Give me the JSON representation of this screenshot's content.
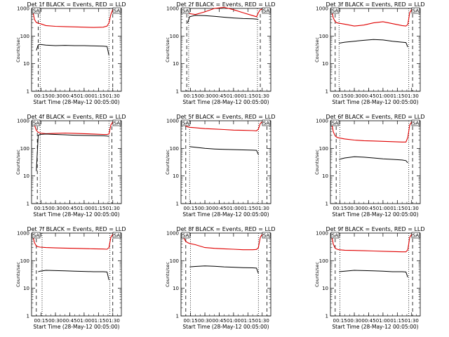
{
  "figure": {
    "series_colors": {
      "events": "#000000",
      "lld": "#e00000"
    }
  },
  "chart_data": [
    {
      "type": "line",
      "panel": "det1f",
      "title": "Det 1f BLACK = Events, RED = LLD",
      "xlabel": "Start Time (28-May-12 00:05:00)",
      "ylabel": "Counts/sec",
      "xlim": [
        "00:05",
        "01:39"
      ],
      "ylim": [
        1,
        1000
      ],
      "yscale": "log",
      "xticks": [
        "00:15",
        "00:30",
        "00:45",
        "01:00",
        "01:15",
        "01:30"
      ],
      "yticks": [
        "1",
        "10",
        "100",
        "1000"
      ],
      "saa_marker_labels": [
        "SA",
        "SA"
      ],
      "x_minutes": [
        6,
        8,
        10,
        12,
        14,
        20,
        30,
        40,
        50,
        60,
        70,
        80,
        84,
        86,
        88,
        90,
        92
      ],
      "series": [
        {
          "name": "LLD",
          "color": "#e00000",
          "values": [
            900,
            400,
            310,
            290,
            280,
            240,
            225,
            220,
            215,
            210,
            205,
            210,
            230,
            300,
            600,
            900,
            950
          ]
        },
        {
          "name": "Events",
          "color": "#000000",
          "values": [
            null,
            null,
            30,
            48,
            50,
            47,
            45,
            46,
            45,
            45,
            44,
            43,
            42,
            20,
            null,
            null,
            null
          ]
        }
      ],
      "dashed_lines_min": [
        12,
        90
      ],
      "dotted_lines_min": [
        14,
        86
      ]
    },
    {
      "type": "line",
      "panel": "det2f",
      "title": "Det 2f BLACK = Events, RED = LLD",
      "xlabel": "Start Time (28-May-12 00:05:00)",
      "ylabel": "Counts/sec",
      "xlim": [
        "00:05",
        "01:39"
      ],
      "ylim": [
        1,
        1000
      ],
      "yscale": "log",
      "xticks": [
        "00:15",
        "00:30",
        "00:45",
        "01:00",
        "01:15",
        "01:30"
      ],
      "yticks": [
        "1",
        "10",
        "100",
        "1000"
      ],
      "saa_marker_labels": [
        "SA",
        "SA"
      ],
      "x_minutes": [
        6,
        8,
        10,
        12,
        14,
        20,
        30,
        40,
        50,
        60,
        70,
        80,
        84,
        86,
        88,
        90,
        92
      ],
      "series": [
        {
          "name": "LLD",
          "color": "#e00000",
          "values": [
            900,
            900,
            800,
            700,
            650,
            600,
            750,
            1000,
            1100,
            900,
            700,
            550,
            500,
            700,
            900,
            950,
            950
          ]
        },
        {
          "name": "Events",
          "color": "#000000",
          "values": [
            null,
            null,
            null,
            300,
            500,
            560,
            550,
            520,
            480,
            450,
            430,
            420,
            410,
            400,
            null,
            null,
            null
          ]
        }
      ],
      "dashed_lines_min": [
        11,
        88
      ],
      "dotted_lines_min": [
        13,
        85
      ]
    },
    {
      "type": "line",
      "panel": "det3f",
      "title": "Det 3f BLACK = Events, RED = LLD",
      "xlabel": "Start Time (28-May-12 00:05:00)",
      "ylabel": "Counts/sec",
      "xlim": [
        "00:05",
        "01:39"
      ],
      "ylim": [
        1,
        1000
      ],
      "yscale": "log",
      "xticks": [
        "00:15",
        "00:30",
        "00:45",
        "01:00",
        "01:15",
        "01:30"
      ],
      "yticks": [
        "1",
        "10",
        "100",
        "1000"
      ],
      "saa_marker_labels": [
        "SA",
        "SA"
      ],
      "x_minutes": [
        6,
        8,
        10,
        12,
        14,
        20,
        30,
        40,
        50,
        60,
        70,
        80,
        84,
        86,
        88,
        90,
        92
      ],
      "series": [
        {
          "name": "LLD",
          "color": "#e00000",
          "values": [
            900,
            450,
            330,
            300,
            290,
            270,
            230,
            250,
            300,
            330,
            280,
            240,
            230,
            260,
            700,
            900,
            950
          ]
        },
        {
          "name": "Events",
          "color": "#000000",
          "values": [
            null,
            null,
            null,
            null,
            55,
            60,
            65,
            70,
            75,
            72,
            65,
            60,
            58,
            40,
            null,
            null,
            null
          ]
        }
      ],
      "dashed_lines_min": [
        10,
        91
      ],
      "dotted_lines_min": [
        14,
        87
      ]
    },
    {
      "type": "line",
      "panel": "det4f",
      "title": "Det 4f BLACK = Events, RED = LLD",
      "xlabel": "Start Time (28-May-12 00:05:00)",
      "ylabel": "Counts/sec",
      "xlim": [
        "00:05",
        "01:39"
      ],
      "ylim": [
        1,
        1000
      ],
      "yscale": "log",
      "xticks": [
        "00:15",
        "00:30",
        "00:45",
        "01:00",
        "01:15",
        "01:30"
      ],
      "yticks": [
        "1",
        "10",
        "100",
        "1000"
      ],
      "saa_marker_labels": [
        "SA",
        "SA"
      ],
      "x_minutes": [
        6,
        8,
        10,
        12,
        14,
        20,
        30,
        40,
        50,
        60,
        70,
        80,
        84,
        86,
        88,
        90,
        92
      ],
      "series": [
        {
          "name": "LLD",
          "color": "#e00000",
          "values": [
            900,
            700,
            450,
            380,
            360,
            340,
            350,
            360,
            350,
            340,
            330,
            320,
            320,
            330,
            700,
            900,
            950
          ]
        },
        {
          "name": "Events",
          "color": "#000000",
          "values": [
            null,
            null,
            15,
            300,
            320,
            330,
            320,
            310,
            300,
            295,
            290,
            285,
            280,
            270,
            null,
            null,
            null
          ]
        }
      ],
      "dashed_lines_min": [
        11,
        89
      ],
      "dotted_lines_min": [
        14,
        86
      ]
    },
    {
      "type": "line",
      "panel": "det5f",
      "title": "Det 5f BLACK = Events, RED = LLD",
      "xlabel": "Start Time (28-May-12 00:05:00)",
      "ylabel": "Counts/sec",
      "xlim": [
        "00:05",
        "01:39"
      ],
      "ylim": [
        1,
        1000
      ],
      "yscale": "log",
      "xticks": [
        "00:15",
        "00:30",
        "00:45",
        "01:00",
        "01:15",
        "01:30"
      ],
      "yticks": [
        "1",
        "10",
        "100",
        "1000"
      ],
      "saa_marker_labels": [
        "SA",
        "SA"
      ],
      "x_minutes": [
        6,
        8,
        10,
        12,
        14,
        20,
        30,
        40,
        50,
        60,
        70,
        80,
        84,
        86,
        88,
        90,
        92
      ],
      "series": [
        {
          "name": "LLD",
          "color": "#e00000",
          "values": [
            900,
            800,
            650,
            600,
            580,
            560,
            520,
            500,
            480,
            460,
            450,
            440,
            430,
            500,
            800,
            900,
            950
          ]
        },
        {
          "name": "Events",
          "color": "#000000",
          "values": [
            null,
            null,
            null,
            null,
            115,
            110,
            100,
            95,
            92,
            90,
            88,
            86,
            85,
            60,
            null,
            null,
            null
          ]
        }
      ],
      "dashed_lines_min": [
        10,
        95
      ],
      "dotted_lines_min": [
        14,
        86
      ]
    },
    {
      "type": "line",
      "panel": "det6f",
      "title": "Det 6f BLACK = Events, RED = LLD",
      "xlabel": "Start Time (28-May-12 00:05:00)",
      "ylabel": "Counts/sec",
      "xlim": [
        "00:05",
        "01:39"
      ],
      "ylim": [
        1,
        1000
      ],
      "yscale": "log",
      "xticks": [
        "00:15",
        "00:30",
        "00:45",
        "01:00",
        "01:15",
        "01:30"
      ],
      "yticks": [
        "1",
        "10",
        "100",
        "1000"
      ],
      "saa_marker_labels": [
        "SA",
        "SA"
      ],
      "x_minutes": [
        6,
        8,
        10,
        12,
        14,
        20,
        30,
        40,
        50,
        60,
        70,
        80,
        84,
        86,
        88,
        90,
        92
      ],
      "series": [
        {
          "name": "LLD",
          "color": "#e00000",
          "values": [
            900,
            400,
            280,
            250,
            240,
            220,
            200,
            190,
            185,
            180,
            175,
            170,
            170,
            250,
            700,
            900,
            950
          ]
        },
        {
          "name": "Events",
          "color": "#000000",
          "values": [
            null,
            null,
            null,
            null,
            40,
            45,
            50,
            48,
            45,
            42,
            40,
            38,
            36,
            30,
            null,
            null,
            null
          ]
        }
      ],
      "dashed_lines_min": [
        11,
        91
      ],
      "dotted_lines_min": [
        15,
        87
      ]
    },
    {
      "type": "line",
      "panel": "det7f",
      "title": "Det 7f BLACK = Events, RED = LLD",
      "xlabel": "Start Time (28-May-12 00:05:00)",
      "ylabel": "Counts/sec",
      "xlim": [
        "00:05",
        "01:39"
      ],
      "ylim": [
        1,
        1000
      ],
      "yscale": "log",
      "xticks": [
        "00:15",
        "00:30",
        "00:45",
        "01:00",
        "01:15",
        "01:30"
      ],
      "yticks": [
        "1",
        "10",
        "100",
        "1000"
      ],
      "saa_marker_labels": [
        "SA",
        "SA"
      ],
      "x_minutes": [
        6,
        8,
        10,
        12,
        14,
        20,
        30,
        40,
        50,
        60,
        70,
        80,
        84,
        86,
        88,
        90,
        92
      ],
      "series": [
        {
          "name": "LLD",
          "color": "#e00000",
          "values": [
            900,
            450,
            340,
            320,
            310,
            300,
            290,
            285,
            280,
            275,
            270,
            265,
            260,
            300,
            700,
            900,
            950
          ]
        },
        {
          "name": "Events",
          "color": "#000000",
          "values": [
            null,
            null,
            null,
            40,
            42,
            45,
            44,
            43,
            42,
            41,
            40,
            40,
            39,
            20,
            null,
            null,
            null
          ]
        }
      ],
      "dashed_lines_min": [
        10,
        90
      ],
      "dotted_lines_min": [
        16,
        87
      ]
    },
    {
      "type": "line",
      "panel": "det8f",
      "title": "Det 8f BLACK = Events, RED = LLD",
      "xlabel": "Start Time (28-May-12 00:05:00)",
      "ylabel": "Counts/sec",
      "xlim": [
        "00:05",
        "01:39"
      ],
      "ylim": [
        1,
        1000
      ],
      "yscale": "log",
      "xticks": [
        "00:15",
        "00:30",
        "00:45",
        "01:00",
        "01:15",
        "01:30"
      ],
      "yticks": [
        "1",
        "10",
        "100",
        "1000"
      ],
      "saa_marker_labels": [
        "SA",
        "SA"
      ],
      "x_minutes": [
        6,
        8,
        10,
        12,
        14,
        20,
        30,
        40,
        50,
        60,
        70,
        80,
        84,
        86,
        88,
        90,
        92
      ],
      "series": [
        {
          "name": "LLD",
          "color": "#e00000",
          "values": [
            900,
            650,
            500,
            450,
            420,
            380,
            300,
            280,
            270,
            260,
            250,
            250,
            255,
            300,
            700,
            900,
            950
          ]
        },
        {
          "name": "Events",
          "color": "#000000",
          "values": [
            null,
            null,
            null,
            null,
            60,
            62,
            65,
            63,
            60,
            58,
            56,
            55,
            54,
            35,
            null,
            null,
            null
          ]
        }
      ],
      "dashed_lines_min": [
        10,
        95
      ],
      "dotted_lines_min": [
        15,
        86
      ]
    },
    {
      "type": "line",
      "panel": "det9f",
      "title": "Det 9f BLACK = Events, RED = LLD",
      "xlabel": "Start Time (28-May-12 00:05:00)",
      "ylabel": "Counts/sec",
      "xlim": [
        "00:05",
        "01:39"
      ],
      "ylim": [
        1,
        1000
      ],
      "yscale": "log",
      "xticks": [
        "00:15",
        "00:30",
        "00:45",
        "01:00",
        "01:15",
        "01:30"
      ],
      "yticks": [
        "1",
        "10",
        "100",
        "1000"
      ],
      "saa_marker_labels": [
        "SA",
        "SA"
      ],
      "x_minutes": [
        6,
        8,
        10,
        12,
        14,
        20,
        30,
        40,
        50,
        60,
        70,
        80,
        84,
        86,
        88,
        90,
        92
      ],
      "series": [
        {
          "name": "LLD",
          "color": "#e00000",
          "values": [
            900,
            400,
            280,
            260,
            250,
            240,
            235,
            230,
            225,
            220,
            215,
            210,
            210,
            250,
            700,
            900,
            950
          ]
        },
        {
          "name": "Events",
          "color": "#000000",
          "values": [
            null,
            null,
            null,
            null,
            40,
            42,
            45,
            44,
            43,
            42,
            40,
            40,
            39,
            25,
            null,
            null,
            null
          ]
        }
      ],
      "dashed_lines_min": [
        10,
        91
      ],
      "dotted_lines_min": [
        15,
        87
      ]
    }
  ]
}
